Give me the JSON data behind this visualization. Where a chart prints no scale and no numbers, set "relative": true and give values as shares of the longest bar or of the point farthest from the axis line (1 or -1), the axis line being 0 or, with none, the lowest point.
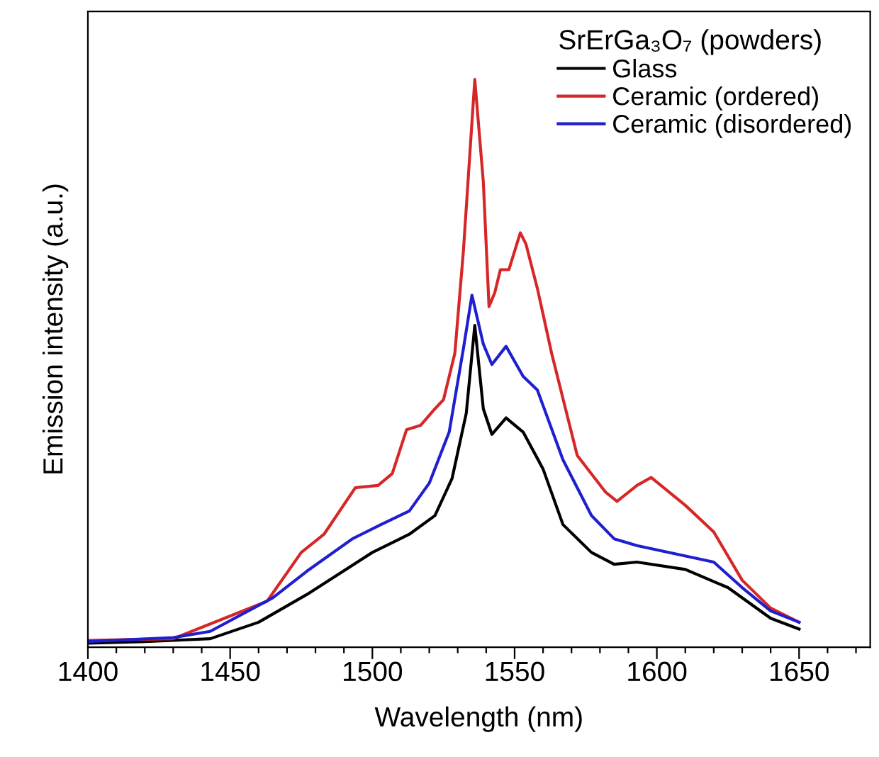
{
  "chart_data": {
    "type": "line",
    "relative": true,
    "xlabel": "Wavelength (nm)",
    "ylabel": "Emission intensity (a.u.)",
    "legend_title": "SrErGa₃O₇ (powders)",
    "legend": "top right",
    "grid": false,
    "marker": "none",
    "line_style": "solid",
    "xlim": [
      1400,
      1675
    ],
    "xticks": [
      1400,
      {
        "value": 1410,
        "label": null
      },
      {
        "value": 1420,
        "label": null
      },
      {
        "value": 1430,
        "label": null
      },
      {
        "value": 1440,
        "label": null
      },
      1450,
      {
        "value": 1460,
        "label": null
      },
      {
        "value": 1470,
        "label": null
      },
      {
        "value": 1480,
        "label": null
      },
      {
        "value": 1490,
        "label": null
      },
      1500,
      {
        "value": 1510,
        "label": null
      },
      {
        "value": 1520,
        "label": null
      },
      {
        "value": 1530,
        "label": null
      },
      {
        "value": 1540,
        "label": null
      },
      1550,
      {
        "value": 1560,
        "label": null
      },
      {
        "value": 1570,
        "label": null
      },
      {
        "value": 1580,
        "label": null
      },
      {
        "value": 1590,
        "label": null
      },
      1600,
      {
        "value": 1610,
        "label": null
      },
      {
        "value": 1620,
        "label": null
      },
      {
        "value": 1630,
        "label": null
      },
      {
        "value": 1640,
        "label": null
      },
      1650,
      {
        "value": 1660,
        "label": null
      },
      {
        "value": 1670,
        "label": null
      }
    ],
    "series": [
      {
        "name": "Glass",
        "color": "#000000",
        "x": [
          1400,
          1420,
          1443,
          1460,
          1477,
          1500,
          1513,
          1522,
          1528,
          1533,
          1536,
          1539,
          1542,
          1547,
          1553,
          1560,
          1567,
          1577,
          1585,
          1593,
          1610,
          1625,
          1640,
          1650
        ],
        "values": [
          0.007,
          0.01,
          0.015,
          0.044,
          0.093,
          0.167,
          0.199,
          0.232,
          0.297,
          0.412,
          0.567,
          0.42,
          0.375,
          0.404,
          0.379,
          0.314,
          0.216,
          0.167,
          0.146,
          0.15,
          0.137,
          0.105,
          0.051,
          0.032
        ]
      },
      {
        "name": "Ceramic (ordered)",
        "color": "#d62728",
        "x": [
          1400,
          1430,
          1463,
          1475,
          1483,
          1494,
          1502,
          1507,
          1512,
          1517,
          1522,
          1525,
          1529,
          1532,
          1536,
          1539,
          1541,
          1543,
          1545,
          1548,
          1552,
          1554,
          1558,
          1563,
          1572,
          1582,
          1586,
          1593,
          1598,
          1610,
          1620,
          1630,
          1640,
          1650
        ],
        "values": [
          0.012,
          0.015,
          0.081,
          0.167,
          0.199,
          0.281,
          0.285,
          0.306,
          0.383,
          0.391,
          0.42,
          0.436,
          0.518,
          0.698,
          1,
          0.82,
          0.6,
          0.624,
          0.665,
          0.665,
          0.73,
          0.71,
          0.632,
          0.518,
          0.338,
          0.273,
          0.257,
          0.285,
          0.299,
          0.25,
          0.203,
          0.118,
          0.069,
          0.044
        ]
      },
      {
        "name": "Ceramic (disordered)",
        "color": "#1f1fd0",
        "x": [
          1400,
          1430,
          1443,
          1465,
          1477,
          1493,
          1503,
          1513,
          1520,
          1527,
          1532,
          1535,
          1539,
          1542,
          1547,
          1553,
          1558,
          1567,
          1577,
          1585,
          1593,
          1620,
          1630,
          1640,
          1650
        ],
        "values": [
          0.01,
          0.017,
          0.028,
          0.087,
          0.134,
          0.191,
          0.216,
          0.24,
          0.289,
          0.379,
          0.526,
          0.62,
          0.534,
          0.498,
          0.53,
          0.477,
          0.453,
          0.33,
          0.232,
          0.191,
          0.179,
          0.15,
          0.105,
          0.064,
          0.044
        ]
      }
    ]
  }
}
